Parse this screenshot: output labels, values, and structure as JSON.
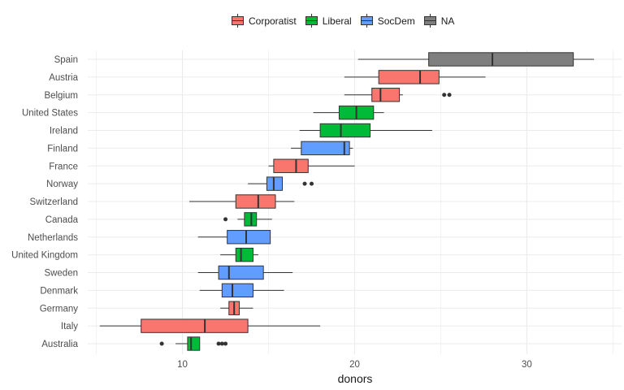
{
  "chart_data": {
    "type": "boxplot",
    "orientation": "horizontal",
    "title": "",
    "xlabel": "donors",
    "ylabel": "",
    "xlim": [
      4.5,
      35.5
    ],
    "x_ticks": [
      10,
      20,
      30
    ],
    "grid": true,
    "legend_position": "top",
    "series": [
      {
        "name": "Corporatist",
        "color": "#F8766D"
      },
      {
        "name": "Liberal",
        "color": "#00BA38"
      },
      {
        "name": "SocDem",
        "color": "#619CFF"
      },
      {
        "name": "NA",
        "color": "#7F7F7F"
      }
    ],
    "categories": [
      "Spain",
      "Austria",
      "Belgium",
      "United States",
      "Ireland",
      "Finland",
      "France",
      "Norway",
      "Switzerland",
      "Canada",
      "Netherlands",
      "United Kingdom",
      "Sweden",
      "Denmark",
      "Germany",
      "Italy",
      "Australia"
    ],
    "boxes": [
      {
        "country": "Spain",
        "group": "NA",
        "min": 20.2,
        "q1": 24.3,
        "median": 28.0,
        "q3": 32.7,
        "max": 33.9,
        "outliers": []
      },
      {
        "country": "Austria",
        "group": "Corporatist",
        "min": 19.4,
        "q1": 21.4,
        "median": 23.8,
        "q3": 24.9,
        "max": 27.6,
        "outliers": []
      },
      {
        "country": "Belgium",
        "group": "Corporatist",
        "min": 19.4,
        "q1": 21.0,
        "median": 21.5,
        "q3": 22.6,
        "max": 22.8,
        "outliers": [
          25.2,
          25.5
        ]
      },
      {
        "country": "United States",
        "group": "Liberal",
        "min": 17.6,
        "q1": 19.1,
        "median": 20.1,
        "q3": 21.1,
        "max": 21.7,
        "outliers": []
      },
      {
        "country": "Ireland",
        "group": "Liberal",
        "min": 16.8,
        "q1": 18.0,
        "median": 19.2,
        "q3": 20.9,
        "max": 24.5,
        "outliers": []
      },
      {
        "country": "Finland",
        "group": "SocDem",
        "min": 16.3,
        "q1": 16.9,
        "median": 19.4,
        "q3": 19.7,
        "max": 19.9,
        "outliers": []
      },
      {
        "country": "France",
        "group": "Corporatist",
        "min": 15.0,
        "q1": 15.3,
        "median": 16.6,
        "q3": 17.3,
        "max": 20.0,
        "outliers": []
      },
      {
        "country": "Norway",
        "group": "SocDem",
        "min": 13.8,
        "q1": 14.9,
        "median": 15.3,
        "q3": 15.8,
        "max": 15.8,
        "outliers": [
          17.1,
          17.5
        ]
      },
      {
        "country": "Switzerland",
        "group": "Corporatist",
        "min": 10.4,
        "q1": 13.1,
        "median": 14.4,
        "q3": 15.4,
        "max": 16.5,
        "outliers": []
      },
      {
        "country": "Canada",
        "group": "Liberal",
        "min": 13.2,
        "q1": 13.6,
        "median": 14.0,
        "q3": 14.3,
        "max": 15.2,
        "outliers": [
          12.5
        ]
      },
      {
        "country": "Netherlands",
        "group": "SocDem",
        "min": 10.9,
        "q1": 12.6,
        "median": 13.7,
        "q3": 15.1,
        "max": 15.1,
        "outliers": []
      },
      {
        "country": "United Kingdom",
        "group": "Liberal",
        "min": 12.2,
        "q1": 13.1,
        "median": 13.4,
        "q3": 14.1,
        "max": 14.4,
        "outliers": []
      },
      {
        "country": "Sweden",
        "group": "SocDem",
        "min": 10.9,
        "q1": 12.1,
        "median": 12.7,
        "q3": 14.7,
        "max": 16.4,
        "outliers": []
      },
      {
        "country": "Denmark",
        "group": "SocDem",
        "min": 11.0,
        "q1": 12.3,
        "median": 12.9,
        "q3": 14.1,
        "max": 15.9,
        "outliers": []
      },
      {
        "country": "Germany",
        "group": "Corporatist",
        "min": 12.2,
        "q1": 12.7,
        "median": 13.0,
        "q3": 13.3,
        "max": 14.1,
        "outliers": []
      },
      {
        "country": "Italy",
        "group": "Corporatist",
        "min": 5.2,
        "q1": 7.6,
        "median": 11.3,
        "q3": 13.8,
        "max": 18.0,
        "outliers": []
      },
      {
        "country": "Australia",
        "group": "Liberal",
        "min": 9.6,
        "q1": 10.3,
        "median": 10.5,
        "q3": 11.0,
        "max": 11.0,
        "outliers": [
          8.8,
          12.1,
          12.3,
          12.5
        ]
      }
    ]
  }
}
